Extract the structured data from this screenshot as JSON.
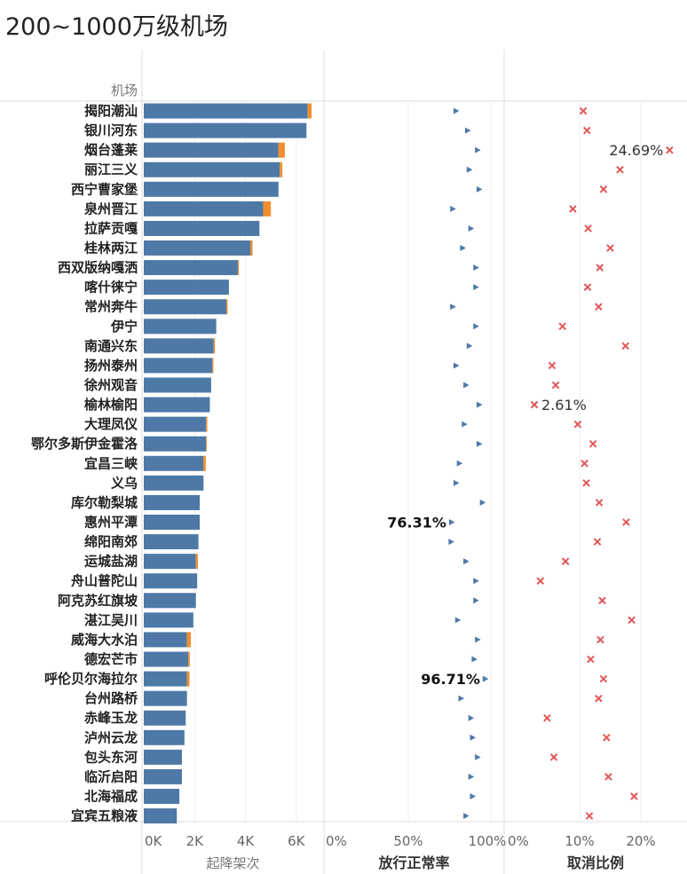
{
  "title": "200~1000万级机场",
  "row_header": "机场",
  "colors": {
    "bar_main": "#4e79a7",
    "bar_extra": "#f28e2b",
    "marker_normal": "#4e79a7",
    "marker_cancel": "#e15759",
    "grid": "#dcdcdc"
  },
  "chart_data": {
    "type": "bar",
    "categories": [
      "揭阳潮汕",
      "银川河东",
      "烟台蓬莱",
      "丽江三义",
      "西宁曹家堡",
      "泉州晋江",
      "拉萨贡嘎",
      "桂林两江",
      "西双版纳嘎洒",
      "喀什徕宁",
      "常州奔牛",
      "伊宁",
      "南通兴东",
      "扬州泰州",
      "徐州观音",
      "榆林榆阳",
      "大理凤仪",
      "鄂尔多斯伊金霍洛",
      "宜昌三峡",
      "义乌",
      "库尔勒梨城",
      "惠州平潭",
      "绵阳南郊",
      "运城盐湖",
      "舟山普陀山",
      "阿克苏红旗坡",
      "湛江吴川",
      "威海大水泊",
      "德宏芒市",
      "呼伦贝尔海拉尔",
      "台州路桥",
      "赤峰玉龙",
      "泸州云龙",
      "包头东河",
      "临沂启阳",
      "北海福成",
      "宜宾五粮液"
    ],
    "panels": [
      {
        "name": "起降架次",
        "axis_title": "起降架次",
        "type": "stacked-bar",
        "ticks": [
          "0K",
          "2K",
          "4K",
          "6K"
        ],
        "xlim": [
          0,
          7000
        ],
        "series": [
          {
            "values": [
              6450,
              6400,
              5300,
              5350,
              5300,
              4700,
              4550,
              4200,
              3700,
              3350,
              3250,
              2850,
              2750,
              2700,
              2650,
              2600,
              2450,
              2450,
              2350,
              2350,
              2200,
              2200,
              2150,
              2050,
              2100,
              2050,
              1950,
              1700,
              1750,
              1700,
              1700,
              1650,
              1600,
              1500,
              1500,
              1400,
              1300
            ]
          },
          {
            "values": [
              150,
              0,
              250,
              100,
              0,
              300,
              0,
              80,
              40,
              0,
              50,
              0,
              50,
              40,
              0,
              0,
              50,
              30,
              90,
              0,
              0,
              0,
              0,
              80,
              0,
              0,
              0,
              150,
              60,
              100,
              0,
              0,
              0,
              0,
              0,
              0,
              0
            ]
          }
        ]
      },
      {
        "name": "放行正常率",
        "axis_title": "放行正常率",
        "type": "scatter",
        "ticks": [
          "0%",
          "50%",
          "100%"
        ],
        "xlim": [
          0,
          1.0
        ],
        "values": [
          0.79,
          0.86,
          0.92,
          0.87,
          0.93,
          0.77,
          0.88,
          0.83,
          0.91,
          0.91,
          0.77,
          0.91,
          0.87,
          0.79,
          0.85,
          0.93,
          0.84,
          0.93,
          0.81,
          0.79,
          0.95,
          0.7631,
          0.76,
          0.85,
          0.91,
          0.91,
          0.8,
          0.92,
          0.9,
          0.9671,
          0.82,
          0.88,
          0.89,
          0.92,
          0.88,
          0.89,
          0.85
        ],
        "labels": [
          {
            "index": 21,
            "text": "76.31%"
          },
          {
            "index": 29,
            "text": "96.71%"
          }
        ]
      },
      {
        "name": "取消比例",
        "axis_title": "取消比例",
        "type": "scatter",
        "ticks": [
          "0%",
          "10%",
          "20%"
        ],
        "xlim": [
          0,
          0.235
        ],
        "values": [
          0.106,
          0.112,
          0.2469,
          0.166,
          0.139,
          0.089,
          0.114,
          0.15,
          0.133,
          0.113,
          0.131,
          0.072,
          0.175,
          0.055,
          0.061,
          0.0261,
          0.097,
          0.122,
          0.108,
          0.111,
          0.132,
          0.176,
          0.129,
          0.077,
          0.036,
          0.137,
          0.185,
          0.134,
          0.118,
          0.139,
          0.131,
          0.047,
          0.144,
          0.058,
          0.147,
          0.189,
          0.116
        ],
        "labels": [
          {
            "index": 2,
            "text": "24.69%"
          },
          {
            "index": 15,
            "text": "2.61%"
          }
        ]
      }
    ]
  }
}
